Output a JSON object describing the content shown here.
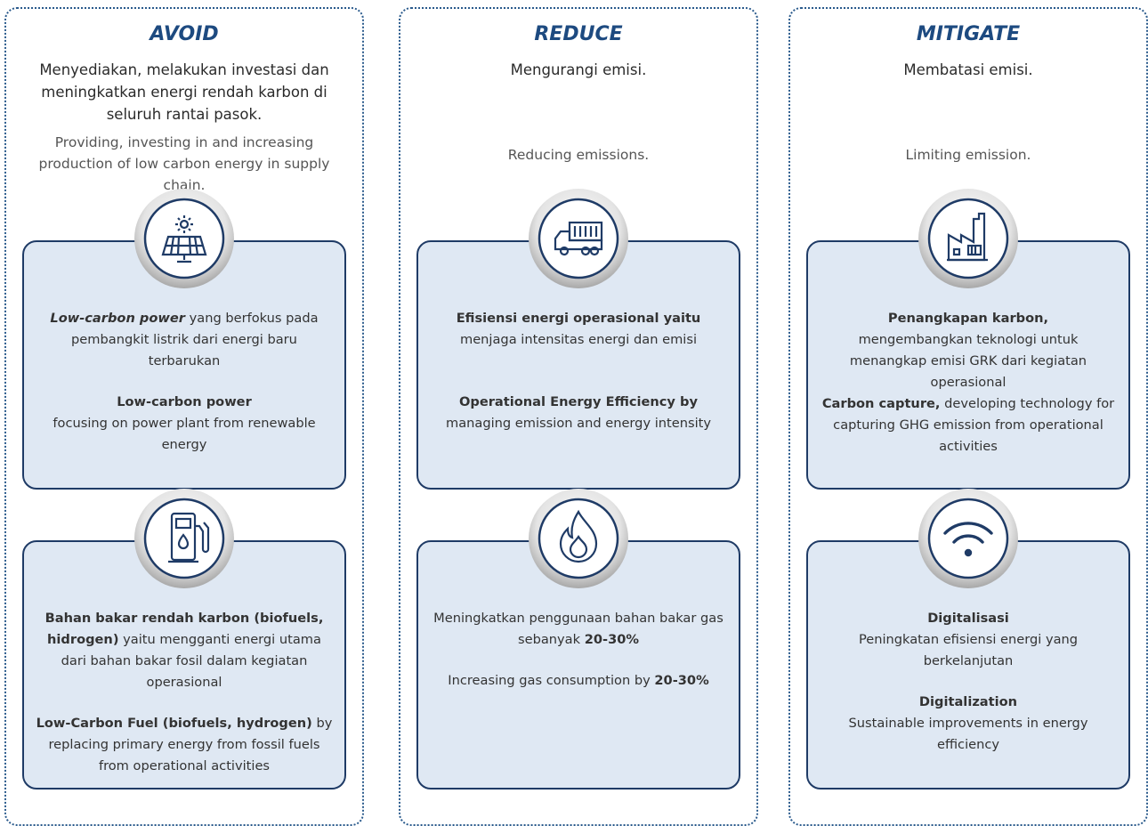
{
  "columns": [
    {
      "title": "AVOID",
      "desc_id": "Menyediakan, melakukan investasi dan meningkatkan energi rendah karbon di seluruh rantai pasok.",
      "desc_en": "Providing, investing in and increasing production of low carbon energy in supply chain.",
      "cards": [
        {
          "icon": "solar",
          "paragraphs": [
            [
              {
                "em": "Low-carbon power"
              },
              {
                "plain": " yang berfokus pada pembangkit listrik dari energi baru terbarukan"
              }
            ],
            [
              {
                "heading": "Low-carbon power"
              },
              {
                "plain": "focusing on power plant from renewable energy"
              }
            ]
          ]
        },
        {
          "icon": "pump",
          "paragraphs": [
            [
              {
                "strong": "Bahan bakar rendah karbon (biofuels, hidrogen)"
              },
              {
                "plain": " yaitu mengganti energi utama dari bahan bakar fosil dalam kegiatan operasional"
              }
            ],
            [
              {
                "strong": "Low-Carbon Fuel (biofuels, hydrogen)"
              },
              {
                "plain": " by replacing primary energy from fossil fuels from operational activities"
              }
            ]
          ]
        }
      ]
    },
    {
      "title": "REDUCE",
      "desc_id": "Mengurangi emisi.",
      "desc_en": "Reducing emissions.",
      "cards": [
        {
          "icon": "truck",
          "paragraphs": [
            [
              {
                "strong": "Efisiensi energi operasional yaitu"
              },
              {
                "plain": " menjaga intensitas energi dan emisi"
              }
            ],
            [
              {
                "strong": "Operational Energy Efficiency by"
              },
              {
                "plain": " managing emission and energy intensity"
              }
            ]
          ]
        },
        {
          "icon": "flame",
          "paragraphs": [
            [
              {
                "plain": "Meningkatkan penggunaan bahan bakar gas sebanyak "
              },
              {
                "strong": "20-30%"
              }
            ],
            [
              {
                "plain": "Increasing gas consumption by "
              },
              {
                "strong": "20-30%"
              }
            ]
          ]
        }
      ]
    },
    {
      "title": "MITIGATE",
      "desc_id": "Membatasi emisi.",
      "desc_en": "Limiting emission.",
      "cards": [
        {
          "icon": "factory",
          "paragraphs": [
            [
              {
                "heading": "Penangkapan karbon,"
              },
              {
                "plain": "mengembangkan teknologi untuk menangkap emisi GRK dari kegiatan operasional"
              }
            ],
            [
              {
                "strong": "Carbon capture,"
              },
              {
                "plain": " developing technology for capturing GHG emission from operational activities"
              }
            ]
          ]
        },
        {
          "icon": "wifi",
          "paragraphs": [
            [
              {
                "heading": "Digitalisasi"
              },
              {
                "plain": "Peningkatan efisiensi energi yang berkelanjutan"
              }
            ],
            [
              {
                "heading": "Digitalization"
              },
              {
                "plain": "Sustainable improvements in energy efficiency"
              }
            ]
          ]
        }
      ]
    }
  ]
}
